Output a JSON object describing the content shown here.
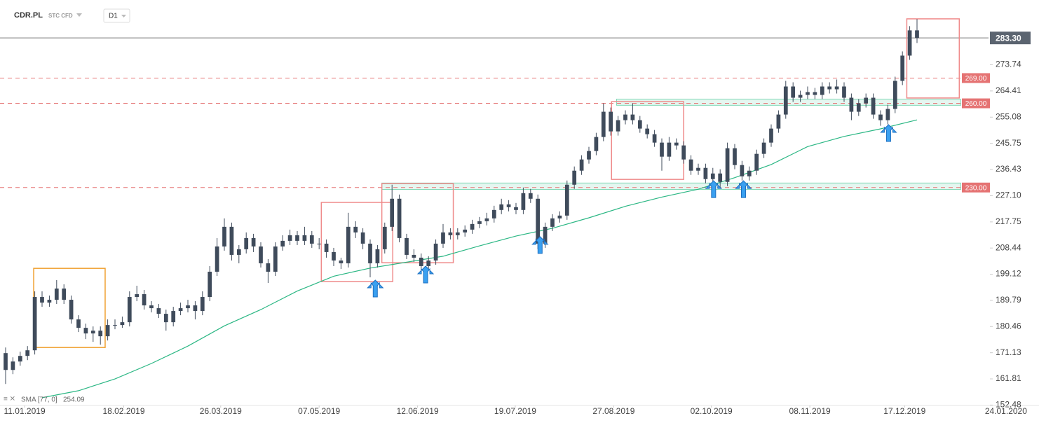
{
  "header": {
    "symbol": "CDR.PL",
    "market": "STC CFD",
    "interval": "D1"
  },
  "chart_data": {
    "type": "candlestick",
    "up_color": "#3f4b5b",
    "down_color": "#3f4b5b",
    "xlim": [
      -0.77,
      141.54
    ],
    "ylim": [
      152.08,
      296.82
    ],
    "xticks": [
      {
        "value": 2.6,
        "label": "11.01.2019"
      },
      {
        "value": 16.2,
        "label": "18.02.2019"
      },
      {
        "value": 29.5,
        "label": "26.03.2019"
      },
      {
        "value": 43,
        "label": "07.05.2019"
      },
      {
        "value": 56.5,
        "label": "12.06.2019"
      },
      {
        "value": 69.9,
        "label": "19.07.2019"
      },
      {
        "value": 83.4,
        "label": "27.08.2019"
      },
      {
        "value": 96.8,
        "label": "02.10.2019"
      },
      {
        "value": 110.3,
        "label": "08.11.2019"
      },
      {
        "value": 123.3,
        "label": "17.12.2019"
      },
      {
        "value": 137.2,
        "label": "24.01.2020"
      }
    ],
    "yticks": [
      273.74,
      264.41,
      255.08,
      245.75,
      236.43,
      {
        "value": 227.1,
        "label": "227.10"
      },
      217.75,
      208.44,
      199.12,
      189.79,
      180.46,
      171.13,
      161.81,
      152.48
    ],
    "last_price": {
      "value": 283.3,
      "label": "283.30"
    },
    "levels": [
      {
        "value": 269,
        "label": "269.00"
      },
      {
        "value": 260,
        "label": "260.00"
      },
      {
        "value": 230,
        "label": "230.00"
      }
    ],
    "level_color": "#e57373",
    "zones": [
      {
        "low": 259.3,
        "high": 261.5,
        "x0": 83.8,
        "x1": 131
      },
      {
        "low": 229.3,
        "high": 231.6,
        "x0": 51.6,
        "x1": 131
      }
    ],
    "boxes": [
      {
        "x0": 3.85,
        "x1": 13.65,
        "top": 201.2,
        "bottom": 173,
        "color": "#f0a030"
      },
      {
        "x0": 43.3,
        "x1": 53.1,
        "top": 224.7,
        "bottom": 196.5,
        "color": "#ef8a8a"
      },
      {
        "x0": 51.6,
        "x1": 61.4,
        "top": 231.4,
        "bottom": 203.2,
        "color": "#ef8a8a"
      },
      {
        "x0": 83.1,
        "x1": 93,
        "top": 260.6,
        "bottom": 232.9,
        "color": "#ef8a8a"
      },
      {
        "x0": 123.6,
        "x1": 130.8,
        "top": 290.1,
        "bottom": 261.9,
        "color": "#ef8a8a"
      }
    ],
    "arrows": [
      {
        "x": 50.7,
        "y": 197
      },
      {
        "x": 57.6,
        "y": 202
      },
      {
        "x": 73.3,
        "y": 212.5
      },
      {
        "x": 97.1,
        "y": 232.4
      },
      {
        "x": 101.2,
        "y": 232.4
      },
      {
        "x": 121.1,
        "y": 252.4
      }
    ],
    "candles": [
      [
        171,
        173,
        160,
        165
      ],
      [
        165,
        169.5,
        163.5,
        168
      ],
      [
        168,
        171.5,
        166.5,
        170
      ],
      [
        170,
        173.5,
        168.5,
        172
      ],
      [
        172,
        193,
        170.5,
        191
      ],
      [
        191,
        193,
        187.5,
        189
      ],
      [
        189,
        191.5,
        187.5,
        190
      ],
      [
        190,
        197,
        188.5,
        194
      ],
      [
        194,
        195.5,
        188.5,
        190
      ],
      [
        190,
        191.5,
        181.5,
        183
      ],
      [
        183,
        184.5,
        178.5,
        180
      ],
      [
        180,
        181.5,
        176,
        178
      ],
      [
        178,
        180.5,
        175,
        179
      ],
      [
        179,
        180.5,
        174,
        177
      ],
      [
        177,
        183,
        175.5,
        181
      ],
      [
        181,
        183,
        179.5,
        181
      ],
      [
        181,
        184,
        180,
        182
      ],
      [
        182,
        193,
        180.5,
        191
      ],
      [
        191,
        195,
        189.5,
        192
      ],
      [
        192,
        193.5,
        186.5,
        188
      ],
      [
        188,
        189.5,
        185.5,
        187
      ],
      [
        187,
        188.5,
        183.5,
        185
      ],
      [
        185,
        186.5,
        179,
        182
      ],
      [
        182,
        187.5,
        180.5,
        186
      ],
      [
        186,
        189,
        184.5,
        187
      ],
      [
        187,
        190,
        185.5,
        188
      ],
      [
        188,
        189.5,
        183,
        186
      ],
      [
        186,
        193,
        184.5,
        191
      ],
      [
        191,
        202,
        189.5,
        200
      ],
      [
        200,
        212,
        198.5,
        209
      ],
      [
        209,
        219,
        207.5,
        216
      ],
      [
        216,
        217.5,
        204,
        206
      ],
      [
        206,
        209.5,
        203,
        208
      ],
      [
        208,
        214,
        206.5,
        212
      ],
      [
        212,
        213.5,
        207,
        209
      ],
      [
        209,
        210.5,
        201.5,
        203
      ],
      [
        203,
        204.5,
        196,
        200
      ],
      [
        200,
        210.5,
        198.5,
        209
      ],
      [
        209,
        213,
        207.5,
        211
      ],
      [
        211,
        215,
        209.5,
        213
      ],
      [
        213,
        214.5,
        209.5,
        211
      ],
      [
        211,
        216,
        209.5,
        213
      ],
      [
        213,
        214.5,
        208.5,
        210
      ],
      [
        210,
        212,
        208,
        210
      ],
      [
        210,
        211.5,
        205,
        207
      ],
      [
        207,
        208.5,
        202,
        204
      ],
      [
        204,
        205,
        201,
        203
      ],
      [
        203,
        221,
        201.5,
        216
      ],
      [
        216,
        218,
        212,
        214
      ],
      [
        214,
        215.5,
        208,
        210
      ],
      [
        210,
        211.5,
        198,
        203
      ],
      [
        203,
        209.5,
        201.5,
        208
      ],
      [
        208,
        217.5,
        206.5,
        216
      ],
      [
        216,
        231,
        214.5,
        226
      ],
      [
        226,
        227.5,
        210.5,
        212
      ],
      [
        212,
        213.5,
        204.5,
        206
      ],
      [
        206,
        208,
        203.5,
        205
      ],
      [
        205,
        206.5,
        200,
        202
      ],
      [
        202,
        205.5,
        200.5,
        204
      ],
      [
        204,
        211.5,
        202.5,
        210
      ],
      [
        210,
        217,
        208.5,
        214
      ],
      [
        214,
        215.5,
        211.5,
        213
      ],
      [
        213,
        215.5,
        211.5,
        214
      ],
      [
        214,
        216.5,
        212.5,
        215
      ],
      [
        215,
        218.5,
        213.5,
        217
      ],
      [
        217,
        219.5,
        215.5,
        218
      ],
      [
        218,
        221,
        216.5,
        219
      ],
      [
        219,
        223.5,
        217.5,
        222
      ],
      [
        222,
        226,
        220.5,
        224
      ],
      [
        224,
        225.5,
        221.5,
        223
      ],
      [
        223,
        224.5,
        220.5,
        222
      ],
      [
        222,
        230,
        220.5,
        228
      ],
      [
        228,
        229.5,
        224.5,
        226
      ],
      [
        226,
        227.5,
        208,
        210
      ],
      [
        210,
        217.5,
        208.5,
        216
      ],
      [
        216,
        220.5,
        214.5,
        219
      ],
      [
        219,
        221.5,
        217.5,
        220
      ],
      [
        220,
        232.5,
        218.5,
        231
      ],
      [
        231,
        237.5,
        229.5,
        236
      ],
      [
        236,
        241.5,
        234.5,
        240
      ],
      [
        240,
        244.5,
        238.5,
        243
      ],
      [
        243,
        249.5,
        241.5,
        248
      ],
      [
        248,
        260,
        246.5,
        257
      ],
      [
        257,
        258.5,
        248.5,
        250
      ],
      [
        250,
        255.5,
        248.5,
        254
      ],
      [
        254,
        257.5,
        252.5,
        256
      ],
      [
        256,
        260,
        252.5,
        254
      ],
      [
        254,
        255.5,
        249.5,
        251
      ],
      [
        251,
        252.5,
        247.5,
        249
      ],
      [
        249,
        250.5,
        244.5,
        246
      ],
      [
        246,
        247.5,
        236,
        241
      ],
      [
        241,
        248,
        239.5,
        246
      ],
      [
        246,
        247.5,
        243.5,
        245
      ],
      [
        245,
        246.5,
        238.5,
        240
      ],
      [
        240,
        241.5,
        234.5,
        236
      ],
      [
        236,
        238.5,
        234.5,
        237
      ],
      [
        237,
        238.5,
        231.5,
        233
      ],
      [
        233,
        237,
        231.5,
        235
      ],
      [
        235,
        236.5,
        230,
        232
      ],
      [
        232,
        246,
        230.5,
        244
      ],
      [
        244,
        245.5,
        236.5,
        238
      ],
      [
        238,
        239.5,
        232.5,
        234
      ],
      [
        234,
        237.5,
        232.5,
        236
      ],
      [
        236,
        243.5,
        234.5,
        242
      ],
      [
        242,
        247.5,
        240.5,
        246
      ],
      [
        246,
        252.5,
        244.5,
        251
      ],
      [
        251,
        257.5,
        249.5,
        256
      ],
      [
        256,
        268,
        254.5,
        266
      ],
      [
        266,
        267.5,
        260.5,
        262
      ],
      [
        262,
        264.5,
        260.5,
        263
      ],
      [
        263,
        266,
        261.5,
        264
      ],
      [
        264,
        265.5,
        261.5,
        263
      ],
      [
        263,
        267.5,
        261.5,
        266
      ],
      [
        266,
        267.5,
        263.5,
        265
      ],
      [
        265,
        268.5,
        263.5,
        266
      ],
      [
        266,
        267.5,
        260.5,
        262
      ],
      [
        262,
        263.5,
        254,
        257
      ],
      [
        257,
        261.5,
        255.5,
        260
      ],
      [
        260,
        263.5,
        258.5,
        262
      ],
      [
        262,
        263.5,
        254.5,
        256
      ],
      [
        256,
        257.5,
        252,
        254
      ],
      [
        254,
        259.5,
        252.5,
        258
      ],
      [
        258,
        269.5,
        256.5,
        268
      ],
      [
        268,
        278.5,
        266.5,
        277
      ],
      [
        277,
        287.5,
        275.5,
        286
      ],
      [
        286,
        290,
        281.5,
        283.3
      ]
    ],
    "sma": {
      "name": "SMA [77, 0]",
      "last": 254.09,
      "color": "#2bb784",
      "x": [
        5,
        10,
        15,
        20,
        25,
        30,
        35,
        40,
        45,
        50,
        55,
        60,
        65,
        70,
        75,
        80,
        85,
        90,
        95,
        100,
        105,
        110,
        115,
        120,
        125
      ],
      "values": [
        155.1,
        157.6,
        161.8,
        167.3,
        173.5,
        180.7,
        186.5,
        193.1,
        198.4,
        201.3,
        203.4,
        205.5,
        209.2,
        212.7,
        215.5,
        219.2,
        223.3,
        226.6,
        229.4,
        233.5,
        238.2,
        244.6,
        248.2,
        250.9,
        254.09
      ]
    }
  }
}
